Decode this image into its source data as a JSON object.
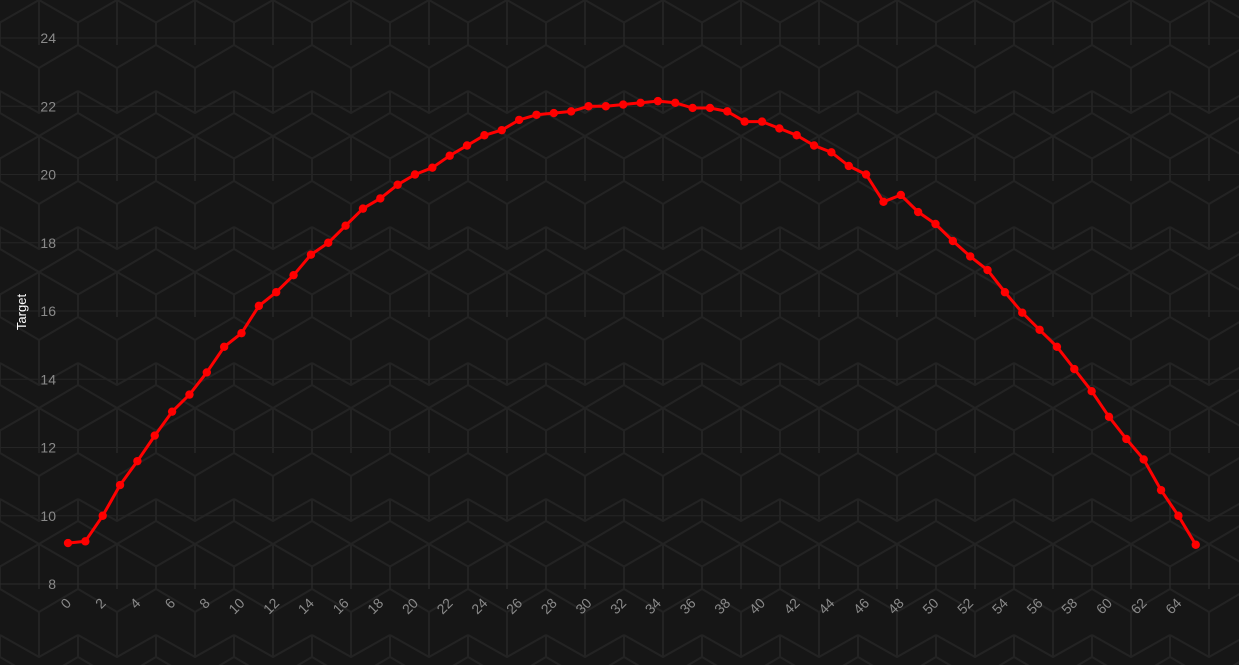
{
  "chart_data": {
    "type": "line",
    "title": "",
    "xlabel": "",
    "ylabel": "Target",
    "xlim": [
      0,
      66
    ],
    "ylim": [
      8,
      24
    ],
    "x_ticks": [
      0,
      2,
      4,
      6,
      8,
      10,
      12,
      14,
      16,
      18,
      20,
      22,
      24,
      26,
      28,
      30,
      32,
      34,
      36,
      38,
      40,
      42,
      44,
      46,
      48,
      50,
      52,
      54,
      56,
      58,
      60,
      62,
      64
    ],
    "y_ticks": [
      8,
      10,
      12,
      14,
      16,
      18,
      20,
      22,
      24
    ],
    "grid": "hexagon-pattern",
    "legend": "none",
    "series": [
      {
        "color": "#ff0000",
        "x": [
          0,
          1,
          2,
          3,
          4,
          5,
          6,
          7,
          8,
          9,
          10,
          11,
          12,
          13,
          14,
          15,
          16,
          17,
          18,
          19,
          20,
          21,
          22,
          23,
          24,
          25,
          26,
          27,
          28,
          29,
          30,
          31,
          32,
          33,
          34,
          35,
          36,
          37,
          38,
          39,
          40,
          41,
          42,
          43,
          44,
          45,
          46,
          47,
          48,
          49,
          50,
          51,
          52,
          53,
          54,
          55,
          56,
          57,
          58,
          59,
          60,
          61,
          62,
          63,
          64,
          65
        ],
        "values": [
          9.2,
          9.25,
          10.0,
          10.9,
          11.6,
          12.35,
          13.05,
          13.55,
          14.2,
          14.95,
          15.35,
          16.15,
          16.55,
          17.05,
          17.65,
          18.0,
          18.5,
          19.0,
          19.3,
          19.7,
          20.0,
          20.2,
          20.55,
          20.85,
          21.15,
          21.3,
          21.6,
          21.75,
          21.8,
          21.85,
          22.0,
          22.0,
          22.05,
          22.1,
          22.15,
          22.1,
          21.95,
          21.95,
          21.85,
          21.55,
          21.55,
          21.35,
          21.15,
          20.85,
          20.65,
          20.25,
          20.0,
          19.2,
          19.4,
          18.9,
          18.55,
          18.05,
          17.6,
          17.2,
          16.55,
          15.95,
          15.45,
          14.95,
          14.3,
          13.65,
          12.9,
          12.25,
          11.65,
          10.75,
          10.0,
          9.15
        ]
      }
    ]
  }
}
